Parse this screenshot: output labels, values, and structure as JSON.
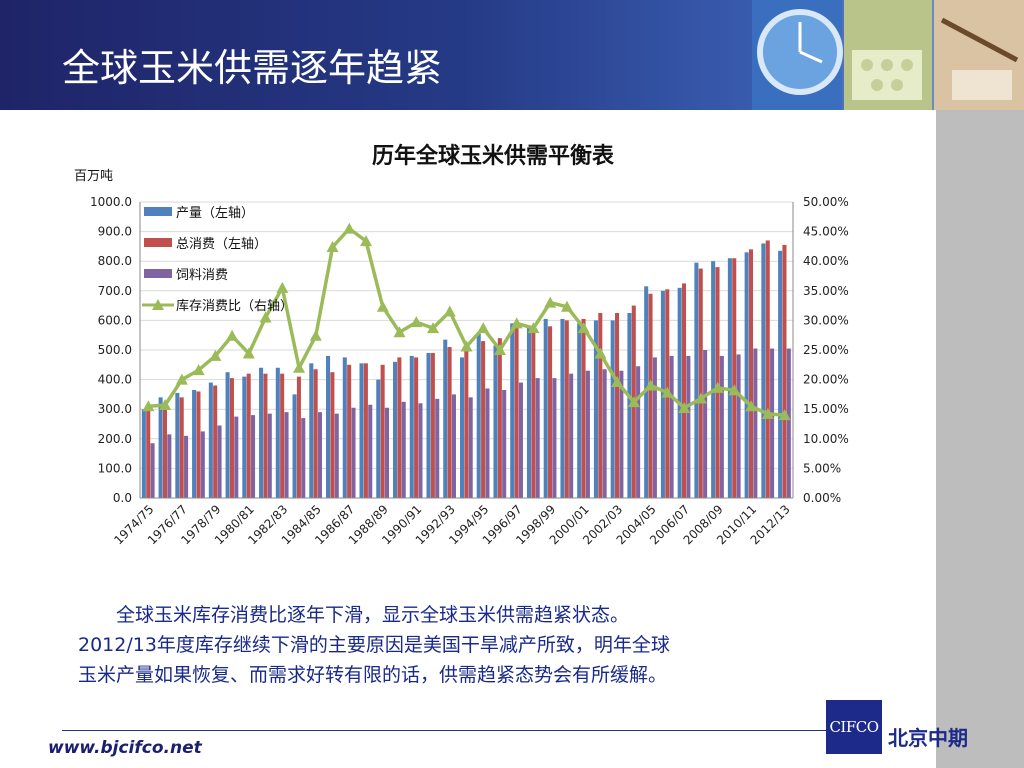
{
  "header": {
    "title": "全球玉米供需逐年趋紧"
  },
  "body_text": {
    "line1": "全球玉米库存消费比逐年下滑，显示全球玉米供需趋紧状态。",
    "line2": "2012/13年度库存继续下滑的主要原因是美国干旱减产所致，明年全球",
    "line3": "玉米产量如果恢复、而需求好转有限的话，供需趋紧态势会有所缓解。"
  },
  "footer": {
    "url": "www.bjcifco.net",
    "logo_text": "CIFCO",
    "company": "北京中期"
  },
  "colors": {
    "header_dark": "#1f2468",
    "production": "#4f81bd",
    "consumption": "#c0504d",
    "feed": "#8064a2",
    "ratio": "#9bbb59",
    "text_blue": "#1a2a8a"
  },
  "chart_data": {
    "type": "bar",
    "title": "历年全球玉米供需平衡表",
    "ylabel": "百万吨",
    "ylim": [
      0,
      1000
    ],
    "y_ticks": [
      "0.0",
      "100.0",
      "200.0",
      "300.0",
      "400.0",
      "500.0",
      "600.0",
      "700.0",
      "800.0",
      "900.0",
      "1000.0"
    ],
    "y2lim": [
      0,
      50
    ],
    "y2_ticks": [
      "0.00%",
      "5.00%",
      "10.00%",
      "15.00%",
      "20.00%",
      "25.00%",
      "30.00%",
      "35.00%",
      "40.00%",
      "45.00%",
      "50.00%"
    ],
    "legend_position": "top-left",
    "x_tick_labels": [
      "1974/75",
      "1976/77",
      "1978/79",
      "1980/81",
      "1982/83",
      "1984/85",
      "1986/87",
      "1988/89",
      "1990/91",
      "1992/93",
      "1994/95",
      "1996/97",
      "1998/99",
      "2000/01",
      "2002/03",
      "2004/05",
      "2006/07",
      "2008/09",
      "2010/11",
      "2012/13"
    ],
    "categories": [
      "1974/75",
      "1975/76",
      "1976/77",
      "1977/78",
      "1978/79",
      "1979/80",
      "1980/81",
      "1981/82",
      "1982/83",
      "1983/84",
      "1984/85",
      "1985/86",
      "1986/87",
      "1987/88",
      "1988/89",
      "1989/90",
      "1990/91",
      "1991/92",
      "1992/93",
      "1993/94",
      "1994/95",
      "1995/96",
      "1996/97",
      "1997/98",
      "1998/99",
      "1999/00",
      "2000/01",
      "2001/02",
      "2002/03",
      "2003/04",
      "2004/05",
      "2005/06",
      "2006/07",
      "2007/08",
      "2008/09",
      "2009/10",
      "2010/11",
      "2011/12",
      "2012/13"
    ],
    "series": [
      {
        "name": "产量（左轴）",
        "type": "bar",
        "axis": "left",
        "values": [
          300,
          340,
          355,
          365,
          390,
          425,
          410,
          440,
          440,
          350,
          455,
          480,
          475,
          455,
          400,
          460,
          480,
          490,
          535,
          475,
          555,
          515,
          590,
          575,
          605,
          605,
          590,
          600,
          600,
          625,
          715,
          700,
          710,
          795,
          800,
          810,
          830,
          860,
          835
        ]
      },
      {
        "name": "总消费（左轴）",
        "type": "bar",
        "axis": "left",
        "values": [
          295,
          310,
          340,
          360,
          380,
          405,
          420,
          420,
          420,
          410,
          435,
          425,
          450,
          455,
          450,
          475,
          475,
          490,
          510,
          510,
          530,
          540,
          575,
          570,
          580,
          600,
          605,
          625,
          625,
          650,
          690,
          705,
          725,
          775,
          780,
          810,
          840,
          870,
          855
        ]
      },
      {
        "name": "饲料消费",
        "type": "bar",
        "axis": "left",
        "values": [
          185,
          215,
          210,
          225,
          245,
          275,
          280,
          285,
          290,
          270,
          290,
          285,
          305,
          315,
          305,
          325,
          320,
          335,
          350,
          340,
          370,
          365,
          390,
          405,
          405,
          420,
          430,
          435,
          430,
          445,
          475,
          480,
          480,
          500,
          480,
          485,
          505,
          505,
          505
        ]
      },
      {
        "name": "库存消费比（右轴）",
        "type": "line",
        "axis": "right",
        "values": [
          15.5,
          15.7,
          20.0,
          21.6,
          24.0,
          27.4,
          24.4,
          30.5,
          35.5,
          22.0,
          27.4,
          42.4,
          45.5,
          43.4,
          32.3,
          28.0,
          29.7,
          28.7,
          31.5,
          25.6,
          28.7,
          25.0,
          29.5,
          28.7,
          33.0,
          32.3,
          28.7,
          24.4,
          19.6,
          16.2,
          19.0,
          17.8,
          15.2,
          16.8,
          18.6,
          18.2,
          15.5,
          14.2,
          14.0
        ]
      }
    ]
  }
}
